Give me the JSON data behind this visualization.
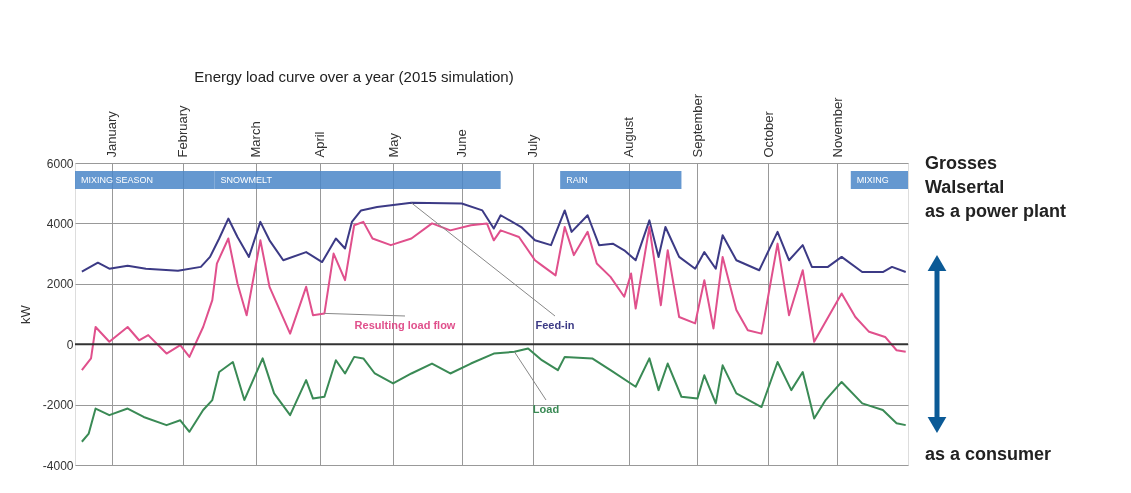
{
  "chart_data": {
    "type": "line",
    "title": "Energy load curve over a year (2015 simulation)",
    "ylabel": "kW",
    "xlim": [
      "2015-01-01",
      "2015-12-31"
    ],
    "xticks": [
      {
        "value": "2015-01-17",
        "label": "January"
      },
      {
        "value": "2015-02-17",
        "label": "February"
      },
      {
        "value": "2015-03-21",
        "label": "March"
      },
      {
        "value": "2015-04-18",
        "label": "April"
      },
      {
        "value": "2015-05-20",
        "label": "May"
      },
      {
        "value": "2015-06-19",
        "label": "June"
      },
      {
        "value": "2015-07-20",
        "label": "July"
      },
      {
        "value": "2015-08-31",
        "label": "August"
      },
      {
        "value": "2015-09-30",
        "label": "September"
      },
      {
        "value": "2015-10-31",
        "label": "October"
      },
      {
        "value": "2015-11-30",
        "label": "November"
      }
    ],
    "ylim": [
      -4000,
      6000
    ],
    "yticks": [
      -4000,
      -2000,
      0,
      2000,
      4000,
      6000
    ],
    "grid": true,
    "legend": false,
    "line_style": "solid",
    "marker": "none",
    "series": [
      {
        "name": "Feed-in",
        "color": "#3c3a85",
        "x": [
          "2015-01-04",
          "2015-01-11",
          "2015-01-16",
          "2015-01-24",
          "2015-02-01",
          "2015-02-15",
          "2015-02-25",
          "2015-03-01",
          "2015-03-05",
          "2015-03-09",
          "2015-03-13",
          "2015-03-18",
          "2015-03-23",
          "2015-03-27",
          "2015-04-02",
          "2015-04-12",
          "2015-04-19",
          "2015-04-25",
          "2015-04-29",
          "2015-05-02",
          "2015-05-06",
          "2015-05-13",
          "2015-05-28",
          "2015-06-19",
          "2015-06-28",
          "2015-07-03",
          "2015-07-06",
          "2015-07-15",
          "2015-07-21",
          "2015-07-28",
          "2015-08-03",
          "2015-08-06",
          "2015-08-13",
          "2015-08-18",
          "2015-08-24",
          "2015-08-29",
          "2015-09-03",
          "2015-09-09",
          "2015-09-13",
          "2015-09-16",
          "2015-09-22",
          "2015-09-29",
          "2015-10-03",
          "2015-10-08",
          "2015-10-11",
          "2015-10-17",
          "2015-10-27",
          "2015-11-04",
          "2015-11-09",
          "2015-11-15",
          "2015-11-19",
          "2015-11-26",
          "2015-12-02",
          "2015-12-11",
          "2015-12-20",
          "2015-12-24",
          "2015-12-30"
        ],
        "values": [
          2400,
          2700,
          2500,
          2600,
          2500,
          2430,
          2560,
          2890,
          3500,
          4160,
          3550,
          2890,
          4050,
          3440,
          2780,
          3050,
          2720,
          3500,
          3170,
          4050,
          4430,
          4540,
          4680,
          4660,
          4430,
          3830,
          4270,
          3880,
          3440,
          3280,
          4430,
          3720,
          4270,
          3280,
          3330,
          3110,
          2780,
          4100,
          2890,
          3880,
          2890,
          2500,
          3050,
          2500,
          3610,
          2780,
          2450,
          3720,
          2780,
          3280,
          2560,
          2560,
          2890,
          2390,
          2390,
          2560,
          2390
        ]
      },
      {
        "name": "Resulting load flow",
        "color": "#e0508c",
        "x": [
          "2015-01-04",
          "2015-01-08",
          "2015-01-10",
          "2015-01-16",
          "2015-01-24",
          "2015-01-29",
          "2015-02-02",
          "2015-02-10",
          "2015-02-16",
          "2015-02-20",
          "2015-02-26",
          "2015-03-02",
          "2015-03-04",
          "2015-03-09",
          "2015-03-13",
          "2015-03-17",
          "2015-03-23",
          "2015-03-27",
          "2015-04-05",
          "2015-04-12",
          "2015-04-15",
          "2015-04-20",
          "2015-04-24",
          "2015-04-29",
          "2015-05-03",
          "2015-05-07",
          "2015-05-11",
          "2015-05-19",
          "2015-05-28",
          "2015-06-06",
          "2015-06-14",
          "2015-06-23",
          "2015-06-30",
          "2015-07-03",
          "2015-07-06",
          "2015-07-14",
          "2015-07-21",
          "2015-07-24",
          "2015-07-30",
          "2015-08-03",
          "2015-08-07",
          "2015-08-13",
          "2015-08-17",
          "2015-08-23",
          "2015-08-29",
          "2015-09-01",
          "2015-09-03",
          "2015-09-09",
          "2015-09-14",
          "2015-09-17",
          "2015-09-22",
          "2015-09-29",
          "2015-10-03",
          "2015-10-07",
          "2015-10-11",
          "2015-10-17",
          "2015-10-22",
          "2015-10-28",
          "2015-11-04",
          "2015-11-09",
          "2015-11-15",
          "2015-11-20",
          "2015-12-02",
          "2015-12-08",
          "2015-12-14",
          "2015-12-21",
          "2015-12-26",
          "2015-12-30"
        ],
        "values": [
          -860,
          -470,
          570,
          80,
          570,
          130,
          300,
          -310,
          -30,
          -420,
          570,
          1460,
          2670,
          3500,
          2010,
          960,
          3440,
          1900,
          350,
          1900,
          960,
          1020,
          3000,
          2120,
          3940,
          4050,
          3500,
          3280,
          3500,
          4000,
          3770,
          3940,
          4000,
          3440,
          3770,
          3550,
          2780,
          2610,
          2280,
          3880,
          2950,
          3720,
          2670,
          2230,
          1570,
          2340,
          1180,
          3880,
          1290,
          3110,
          900,
          690,
          2120,
          520,
          2890,
          1130,
          460,
          350,
          3330,
          960,
          2450,
          80,
          1680,
          900,
          410,
          240,
          -200,
          -250
        ]
      },
      {
        "name": "Load",
        "color": "#3a8a55",
        "x": [
          "2015-01-04",
          "2015-01-07",
          "2015-01-10",
          "2015-01-16",
          "2015-01-24",
          "2015-01-31",
          "2015-02-10",
          "2015-02-16",
          "2015-02-20",
          "2015-02-26",
          "2015-03-02",
          "2015-03-05",
          "2015-03-11",
          "2015-03-16",
          "2015-03-24",
          "2015-03-29",
          "2015-04-05",
          "2015-04-12",
          "2015-04-15",
          "2015-04-20",
          "2015-04-25",
          "2015-04-29",
          "2015-05-03",
          "2015-05-07",
          "2015-05-12",
          "2015-05-20",
          "2015-05-28",
          "2015-06-06",
          "2015-06-14",
          "2015-06-23",
          "2015-07-03",
          "2015-07-12",
          "2015-07-18",
          "2015-07-24",
          "2015-07-31",
          "2015-08-03",
          "2015-08-15",
          "2015-08-23",
          "2015-09-03",
          "2015-09-09",
          "2015-09-13",
          "2015-09-17",
          "2015-09-23",
          "2015-09-30",
          "2015-10-03",
          "2015-10-08",
          "2015-10-11",
          "2015-10-17",
          "2015-10-28",
          "2015-11-04",
          "2015-11-10",
          "2015-11-15",
          "2015-11-20",
          "2015-11-25",
          "2015-12-02",
          "2015-12-11",
          "2015-12-20",
          "2015-12-26",
          "2015-12-30"
        ],
        "values": [
          -3230,
          -2960,
          -2130,
          -2350,
          -2130,
          -2410,
          -2680,
          -2520,
          -2900,
          -2180,
          -1850,
          -920,
          -590,
          -1850,
          -470,
          -1630,
          -2350,
          -1190,
          -1800,
          -1740,
          -530,
          -970,
          -420,
          -470,
          -970,
          -1300,
          -970,
          -640,
          -970,
          -640,
          -310,
          -250,
          -140,
          -530,
          -860,
          -420,
          -470,
          -860,
          -1410,
          -470,
          -1520,
          -640,
          -1740,
          -1800,
          -1030,
          -1960,
          -700,
          -1630,
          -2080,
          -590,
          -1520,
          -920,
          -2460,
          -1850,
          -1250,
          -1960,
          -2180,
          -2620,
          -2680
        ]
      }
    ],
    "ref_lines": [
      {
        "axis": "y",
        "value": 0,
        "color": "#333333"
      }
    ],
    "bands": [
      {
        "axis": "x",
        "from": "2015-01-01",
        "to": "2015-03-03",
        "label": "MIXING SEASON",
        "color": "#4a86c8"
      },
      {
        "axis": "x",
        "from": "2015-03-03",
        "to": "2015-07-06",
        "label": "SNOWMELT",
        "color": "#4a86c8"
      },
      {
        "axis": "x",
        "from": "2015-08-01",
        "to": "2015-09-23",
        "label": "RAIN",
        "color": "#4a86c8"
      },
      {
        "axis": "x",
        "from": "2015-12-06",
        "to": "2015-12-31",
        "label": "MIXING",
        "color": "#4a86c8"
      }
    ],
    "annotations": [
      "Grosses\nWalsertal\nas a power plant",
      "as a consumer"
    ]
  }
}
